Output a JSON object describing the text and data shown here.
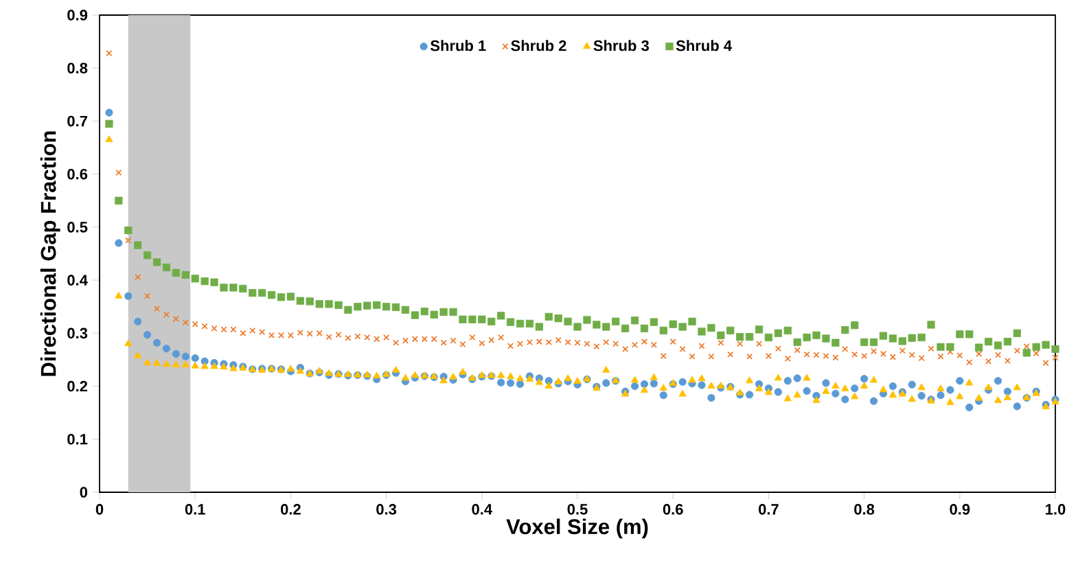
{
  "chart_data": {
    "type": "scatter",
    "xlabel": "Voxel Size (m)",
    "ylabel": "Directional Gap Fraction",
    "x": [
      0.01,
      0.02,
      0.03,
      0.04,
      0.05,
      0.06,
      0.07,
      0.08,
      0.09,
      0.1,
      0.11,
      0.12,
      0.13,
      0.14,
      0.15,
      0.16,
      0.17,
      0.18,
      0.19,
      0.2,
      0.21,
      0.22,
      0.23,
      0.24,
      0.25,
      0.26,
      0.27,
      0.28,
      0.29,
      0.3,
      0.31,
      0.32,
      0.33,
      0.34,
      0.35,
      0.36,
      0.37,
      0.38,
      0.39,
      0.4,
      0.41,
      0.42,
      0.43,
      0.44,
      0.45,
      0.46,
      0.47,
      0.48,
      0.49,
      0.5,
      0.51,
      0.52,
      0.53,
      0.54,
      0.55,
      0.56,
      0.57,
      0.58,
      0.59,
      0.6,
      0.61,
      0.62,
      0.63,
      0.64,
      0.65,
      0.66,
      0.67,
      0.68,
      0.69,
      0.7,
      0.71,
      0.72,
      0.73,
      0.74,
      0.75,
      0.76,
      0.77,
      0.78,
      0.79,
      0.8,
      0.81,
      0.82,
      0.83,
      0.84,
      0.85,
      0.86,
      0.87,
      0.88,
      0.89,
      0.9,
      0.91,
      0.92,
      0.93,
      0.94,
      0.95,
      0.96,
      0.97,
      0.98,
      0.99,
      1.0
    ],
    "series": [
      {
        "name": "Shrub 1",
        "color": "#5b9bd5",
        "marker": "circle",
        "values": [
          0.716,
          0.47,
          0.37,
          0.322,
          0.297,
          0.282,
          0.271,
          0.261,
          0.256,
          0.253,
          0.247,
          0.244,
          0.242,
          0.24,
          0.237,
          0.232,
          0.233,
          0.233,
          0.232,
          0.228,
          0.235,
          0.224,
          0.226,
          0.221,
          0.223,
          0.22,
          0.221,
          0.219,
          0.213,
          0.221,
          0.225,
          0.209,
          0.216,
          0.219,
          0.217,
          0.218,
          0.212,
          0.222,
          0.213,
          0.218,
          0.219,
          0.207,
          0.206,
          0.204,
          0.219,
          0.215,
          0.21,
          0.205,
          0.209,
          0.203,
          0.213,
          0.199,
          0.206,
          0.21,
          0.19,
          0.2,
          0.204,
          0.205,
          0.183,
          0.204,
          0.208,
          0.205,
          0.202,
          0.178,
          0.197,
          0.199,
          0.184,
          0.184,
          0.204,
          0.196,
          0.189,
          0.21,
          0.215,
          0.191,
          0.182,
          0.206,
          0.186,
          0.175,
          0.196,
          0.214,
          0.172,
          0.186,
          0.2,
          0.189,
          0.203,
          0.182,
          0.175,
          0.183,
          0.193,
          0.21,
          0.16,
          0.172,
          0.193,
          0.21,
          0.19,
          0.162,
          0.178,
          0.19,
          0.165,
          0.175
        ]
      },
      {
        "name": "Shrub 2",
        "color": "#ed7d31",
        "marker": "cross",
        "values": [
          0.828,
          0.603,
          0.475,
          0.406,
          0.37,
          0.346,
          0.335,
          0.327,
          0.32,
          0.317,
          0.313,
          0.309,
          0.307,
          0.307,
          0.3,
          0.305,
          0.302,
          0.296,
          0.296,
          0.296,
          0.301,
          0.299,
          0.3,
          0.293,
          0.297,
          0.291,
          0.294,
          0.292,
          0.289,
          0.292,
          0.282,
          0.286,
          0.289,
          0.289,
          0.289,
          0.282,
          0.286,
          0.279,
          0.292,
          0.281,
          0.287,
          0.292,
          0.276,
          0.28,
          0.283,
          0.284,
          0.283,
          0.287,
          0.283,
          0.282,
          0.28,
          0.275,
          0.283,
          0.28,
          0.27,
          0.278,
          0.284,
          0.278,
          0.257,
          0.284,
          0.27,
          0.256,
          0.276,
          0.256,
          0.282,
          0.26,
          0.28,
          0.256,
          0.28,
          0.257,
          0.271,
          0.252,
          0.268,
          0.26,
          0.259,
          0.257,
          0.254,
          0.27,
          0.26,
          0.257,
          0.266,
          0.261,
          0.255,
          0.267,
          0.259,
          0.253,
          0.271,
          0.256,
          0.265,
          0.258,
          0.245,
          0.261,
          0.247,
          0.259,
          0.248,
          0.267,
          0.275,
          0.262,
          0.244,
          0.254
        ]
      },
      {
        "name": "Shrub 3",
        "color": "#ffc000",
        "marker": "triangle",
        "values": [
          0.665,
          0.37,
          0.28,
          0.257,
          0.244,
          0.243,
          0.241,
          0.24,
          0.24,
          0.238,
          0.237,
          0.237,
          0.236,
          0.233,
          0.234,
          0.231,
          0.23,
          0.232,
          0.23,
          0.232,
          0.228,
          0.223,
          0.228,
          0.224,
          0.222,
          0.222,
          0.221,
          0.221,
          0.219,
          0.222,
          0.23,
          0.215,
          0.22,
          0.219,
          0.218,
          0.21,
          0.217,
          0.226,
          0.215,
          0.22,
          0.22,
          0.22,
          0.218,
          0.214,
          0.213,
          0.207,
          0.2,
          0.208,
          0.214,
          0.209,
          0.213,
          0.196,
          0.23,
          0.21,
          0.185,
          0.211,
          0.192,
          0.216,
          0.196,
          0.205,
          0.185,
          0.211,
          0.214,
          0.2,
          0.2,
          0.197,
          0.187,
          0.21,
          0.195,
          0.188,
          0.215,
          0.176,
          0.183,
          0.215,
          0.173,
          0.19,
          0.2,
          0.195,
          0.18,
          0.2,
          0.211,
          0.193,
          0.183,
          0.185,
          0.175,
          0.197,
          0.172,
          0.195,
          0.169,
          0.18,
          0.206,
          0.177,
          0.197,
          0.173,
          0.178,
          0.197,
          0.178,
          0.186,
          0.161,
          0.17
        ]
      },
      {
        "name": "Shrub 4",
        "color": "#70ad47",
        "marker": "square",
        "values": [
          0.695,
          0.55,
          0.494,
          0.466,
          0.447,
          0.434,
          0.424,
          0.414,
          0.41,
          0.403,
          0.398,
          0.396,
          0.386,
          0.386,
          0.384,
          0.376,
          0.376,
          0.372,
          0.368,
          0.369,
          0.361,
          0.36,
          0.355,
          0.355,
          0.353,
          0.344,
          0.35,
          0.352,
          0.353,
          0.35,
          0.349,
          0.344,
          0.334,
          0.341,
          0.335,
          0.34,
          0.34,
          0.326,
          0.326,
          0.326,
          0.322,
          0.333,
          0.321,
          0.318,
          0.318,
          0.312,
          0.331,
          0.328,
          0.322,
          0.312,
          0.325,
          0.316,
          0.312,
          0.322,
          0.309,
          0.324,
          0.309,
          0.321,
          0.305,
          0.317,
          0.312,
          0.322,
          0.303,
          0.31,
          0.296,
          0.305,
          0.293,
          0.293,
          0.307,
          0.292,
          0.3,
          0.305,
          0.283,
          0.292,
          0.296,
          0.29,
          0.282,
          0.306,
          0.315,
          0.283,
          0.283,
          0.295,
          0.29,
          0.285,
          0.291,
          0.292,
          0.316,
          0.274,
          0.274,
          0.298,
          0.298,
          0.273,
          0.284,
          0.277,
          0.284,
          0.3,
          0.263,
          0.274,
          0.278,
          0.27
        ]
      }
    ],
    "xlim": [
      0,
      1
    ],
    "ylim": [
      0,
      0.9
    ],
    "xticks": [
      0,
      0.1,
      0.2,
      0.3,
      0.4,
      0.5,
      0.6,
      0.7,
      0.8,
      0.9,
      {
        "value": 1,
        "label": "1.0"
      }
    ],
    "yticks": [
      0,
      0.1,
      0.2,
      0.3,
      0.4,
      0.5,
      0.6,
      0.7,
      0.8,
      0.9
    ],
    "bands": [
      {
        "axis": "x",
        "from": 0.03,
        "to": 0.095,
        "color": "#c8c8c8"
      }
    ],
    "legend": "top",
    "grid": false
  }
}
